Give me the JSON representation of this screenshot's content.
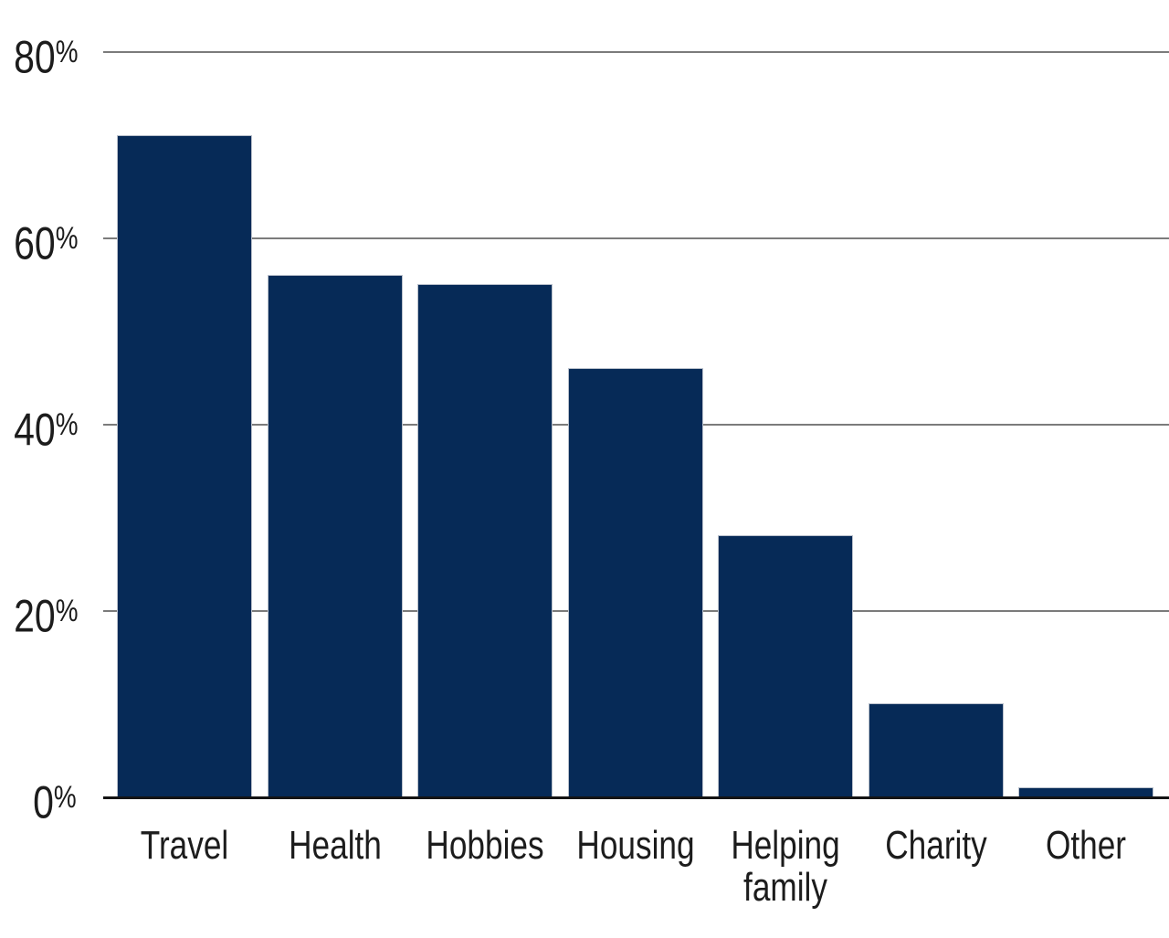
{
  "figure": {
    "background_color": "#ffffff",
    "title": "",
    "legend": "none"
  },
  "chart_data": {
    "type": "bar",
    "title": "",
    "xlabel": "",
    "ylabel": "",
    "categories": [
      "Travel",
      "Health",
      "Hobbies",
      "Housing",
      "Helping family",
      "Charity",
      "Other"
    ],
    "values": [
      71,
      56,
      55,
      46,
      28,
      10,
      1
    ],
    "value_unit": "%",
    "ylim": [
      0,
      80
    ],
    "ytick_values": [
      80,
      60,
      40,
      20,
      0
    ],
    "ytick_labels": [
      "80%",
      "60%",
      "40%",
      "20%",
      "0%"
    ],
    "grid": "horizontal gridlines every 20%, baseline solid black",
    "legend_position": "none",
    "bar_color": "#062a57",
    "bar_border_color": "#b9c0cb",
    "gridline_color": "#7b7b7b",
    "axis_line_color": "#141414",
    "text_color": "#1c1c1c"
  }
}
